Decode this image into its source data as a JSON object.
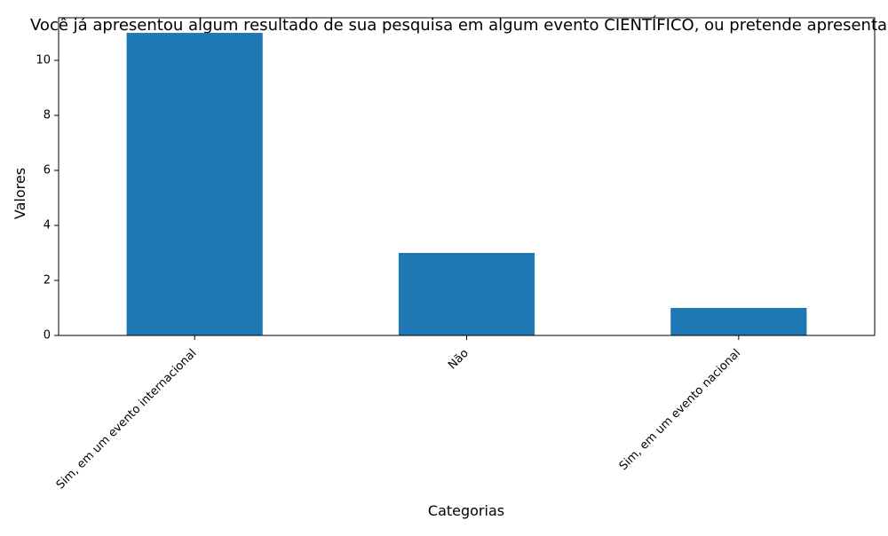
{
  "chart_data": {
    "type": "bar",
    "title": "Você já apresentou algum resultado de sua pesquisa em algum evento CIENTÍFICO, ou pretende apresentar?",
    "xlabel": "Categorias",
    "ylabel": "Valores",
    "categories": [
      "Sim, em um evento internacional",
      "Não",
      "Sim, em um evento nacional"
    ],
    "values": [
      11,
      3,
      1
    ],
    "ylim": [
      0,
      11.55
    ],
    "yticks": [
      0,
      2,
      4,
      6,
      8,
      10
    ],
    "grid": false,
    "legend": "none",
    "bar_color": "#1f77b4",
    "xtick_rotation_deg": 45
  }
}
